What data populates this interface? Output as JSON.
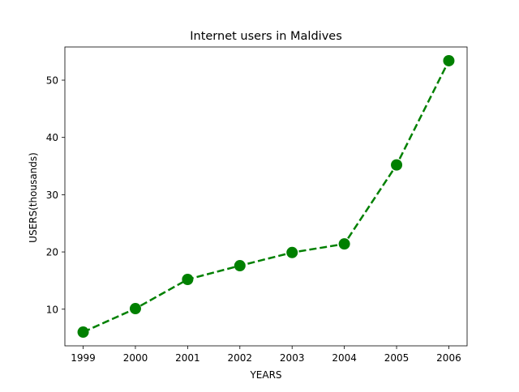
{
  "chart_data": {
    "type": "line",
    "title": "Internet users in Maldives",
    "xlabel": "YEARS",
    "ylabel": "USERS(thousands)",
    "x": [
      1999,
      2000,
      2001,
      2002,
      2003,
      2004,
      2005,
      2006
    ],
    "series": [
      {
        "values": [
          6.0,
          10.1,
          15.2,
          17.6,
          19.9,
          21.4,
          35.2,
          53.4
        ],
        "color": "#008000",
        "line_style": "dashed",
        "marker": "circle"
      }
    ],
    "xlim": [
      1998.65,
      2006.35
    ],
    "ylim": [
      3.6,
      55.8
    ],
    "xticks": [
      1999,
      2000,
      2001,
      2002,
      2003,
      2004,
      2005,
      2006
    ],
    "yticks": [
      10,
      20,
      30,
      40,
      50
    ],
    "grid": false,
    "legend": "none"
  }
}
